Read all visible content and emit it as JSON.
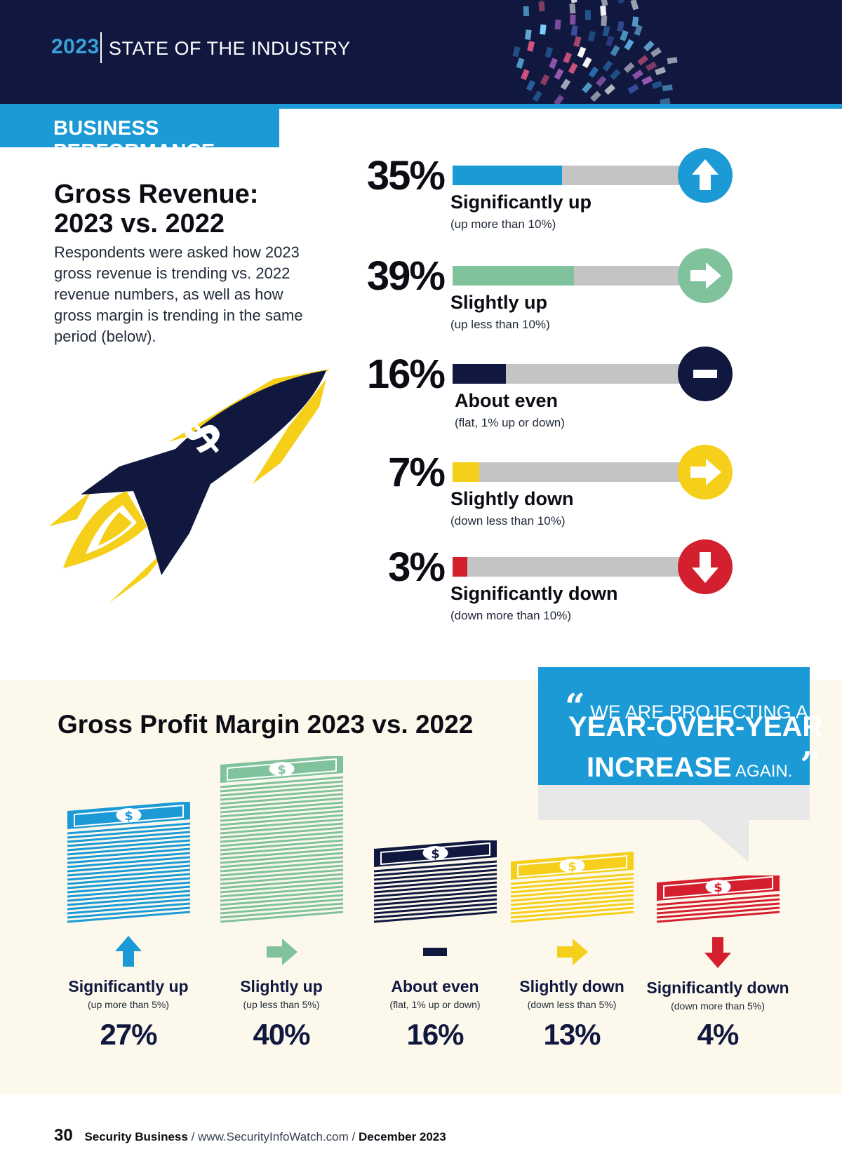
{
  "header": {
    "year": "2023",
    "title": "STATE OF THE INDUSTRY",
    "section": "BUSINESS PERFORMANCE"
  },
  "revenue": {
    "title_line1": "Gross Revenue:",
    "title_line2": "2023 vs. 2022",
    "description": "Respondents were asked how 2023 gross revenue is trending vs. 2022 revenue numbers, as well as how gross margin is trending in the same period (below)."
  },
  "margin": {
    "title": "Gross Profit Margin 2023 vs. 2022"
  },
  "quote": {
    "open": "“",
    "line1": "WE ARE PROJECTING A",
    "line2": "YEAR-OVER-YEAR",
    "line3_big": "INCREASE",
    "line3_small": " AGAIN.",
    "close": "”"
  },
  "colors": {
    "sig_up": "#1b9ad6",
    "slight_up": "#7fc29b",
    "even": "#10183f",
    "slight_down": "#f5cf1a",
    "sig_down": "#d4202e",
    "track": "#c4c4c4"
  },
  "chart_data": [
    {
      "type": "bar",
      "title": "Gross Revenue: 2023 vs. 2022",
      "categories": [
        "Significantly up",
        "Slightly up",
        "About even",
        "Slightly down",
        "Significantly down"
      ],
      "subtitles": [
        "(up more than 10%)",
        "(up less than 10%)",
        "(flat, 1% up or down)",
        "(down less than 10%)",
        "(down more than 10%)"
      ],
      "values": [
        35,
        39,
        16,
        7,
        3
      ],
      "value_labels": [
        "35%",
        "39%",
        "16%",
        "7%",
        "3%"
      ],
      "icons": [
        "arrow-up-icon",
        "arrow-right-icon",
        "minus-icon",
        "arrow-right-icon",
        "arrow-down-icon"
      ],
      "ylim": [
        0,
        100
      ]
    },
    {
      "type": "bar",
      "title": "Gross Profit Margin 2023 vs. 2022",
      "categories": [
        "Significantly up",
        "Slightly up",
        "About even",
        "Slightly down",
        "Significantly  down"
      ],
      "subtitles": [
        "(up more than 5%)",
        "(up less than 5%)",
        "(flat, 1% up or down)",
        "(down less than 5%)",
        "(down more than 5%)"
      ],
      "values": [
        27,
        40,
        16,
        13,
        4
      ],
      "value_labels": [
        "27%",
        "40%",
        "16%",
        "13%",
        "4%"
      ],
      "icons": [
        "money-stack-icon",
        "money-stack-icon",
        "money-stack-icon",
        "money-stack-icon",
        "money-stack-icon"
      ],
      "ylim": [
        0,
        40
      ]
    }
  ],
  "footer": {
    "page": "30",
    "publication": "Security Business",
    "sep1": " / ",
    "url": "www.SecurityInfoWatch.com",
    "sep2": " / ",
    "date": "December 2023"
  }
}
